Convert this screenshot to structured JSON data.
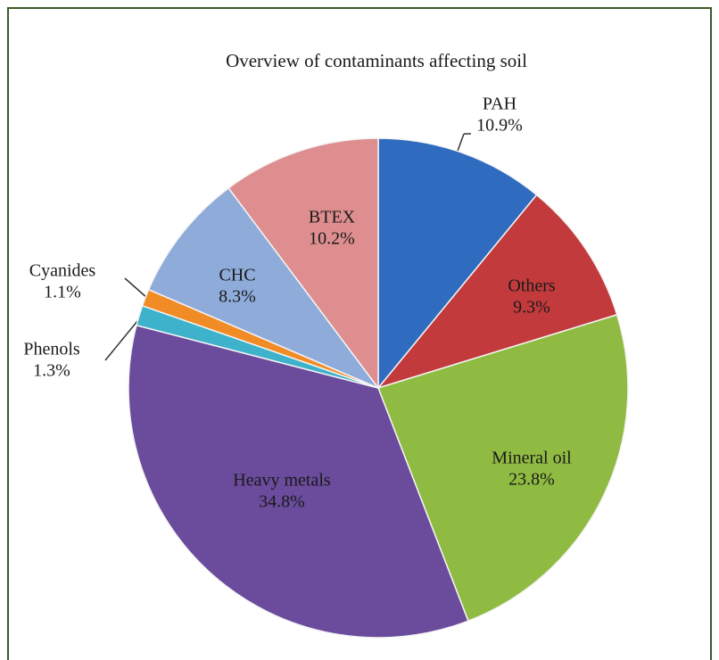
{
  "chart_data": {
    "type": "pie",
    "title": "Overview of contaminants affecting soil",
    "categories": [
      "PAH",
      "Others",
      "Mineral oil",
      "Heavy metals",
      "Phenols",
      "Cyanides",
      "CHC",
      "BTEX"
    ],
    "values": [
      10.9,
      9.3,
      23.8,
      34.8,
      1.3,
      1.1,
      8.3,
      10.2
    ],
    "value_labels": [
      "10.9%",
      "9.3%",
      "23.8%",
      "34.8%",
      "1.3%",
      "1.1%",
      "8.3%",
      "10.2%"
    ],
    "colors": [
      "#2f6cc0",
      "#c23a3c",
      "#8fbb42",
      "#6b4b9c",
      "#3fb2cb",
      "#f08b25",
      "#8eabda",
      "#de8e8e"
    ]
  }
}
